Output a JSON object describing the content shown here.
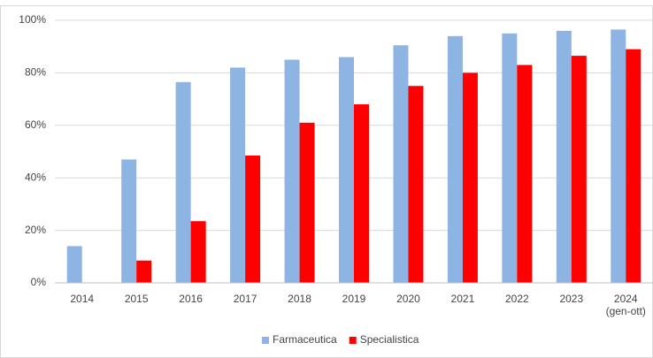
{
  "chart_data": {
    "type": "bar",
    "categories": [
      "2014",
      "2015",
      "2016",
      "2017",
      "2018",
      "2019",
      "2020",
      "2021",
      "2022",
      "2023",
      "2024\n(gen-ott)"
    ],
    "series": [
      {
        "name": "Farmaceutica",
        "color": "#8db4e2",
        "values": [
          14,
          47,
          76.5,
          82,
          85,
          86,
          90.5,
          94,
          95,
          96,
          96.5
        ]
      },
      {
        "name": "Specialistica",
        "color": "#ff0000",
        "values": [
          null,
          8.5,
          23.5,
          48.5,
          61,
          68,
          75,
          80,
          83,
          86.5,
          89
        ]
      }
    ],
    "ylim": [
      0,
      100
    ],
    "yticks": [
      {
        "value": 0,
        "label": "0%"
      },
      {
        "value": 20,
        "label": "20%"
      },
      {
        "value": 40,
        "label": "40%"
      },
      {
        "value": 60,
        "label": "60%"
      },
      {
        "value": 80,
        "label": "80%"
      },
      {
        "value": 100,
        "label": "100%"
      }
    ],
    "grid": true,
    "legend": "bottom"
  }
}
